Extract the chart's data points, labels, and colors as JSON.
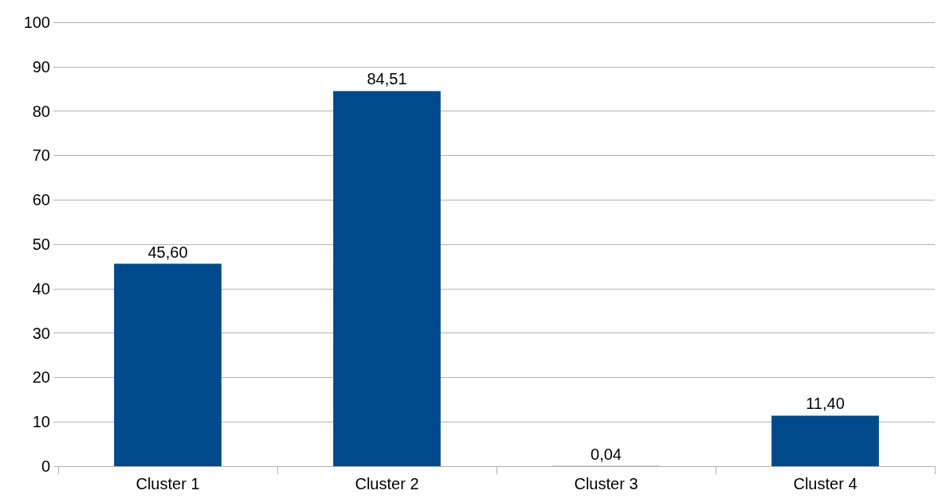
{
  "chart_data": {
    "type": "bar",
    "categories": [
      "Cluster 1",
      "Cluster 2",
      "Cluster 3",
      "Cluster 4"
    ],
    "values": [
      45.6,
      84.51,
      0.04,
      11.4
    ],
    "value_labels": [
      "45,60",
      "84,51",
      "0,04",
      "11,40"
    ],
    "color": "#004a8b",
    "ylim": [
      0,
      100
    ],
    "yticks": [
      0,
      10,
      20,
      30,
      40,
      50,
      60,
      70,
      80,
      90,
      100
    ],
    "grid": "y"
  }
}
